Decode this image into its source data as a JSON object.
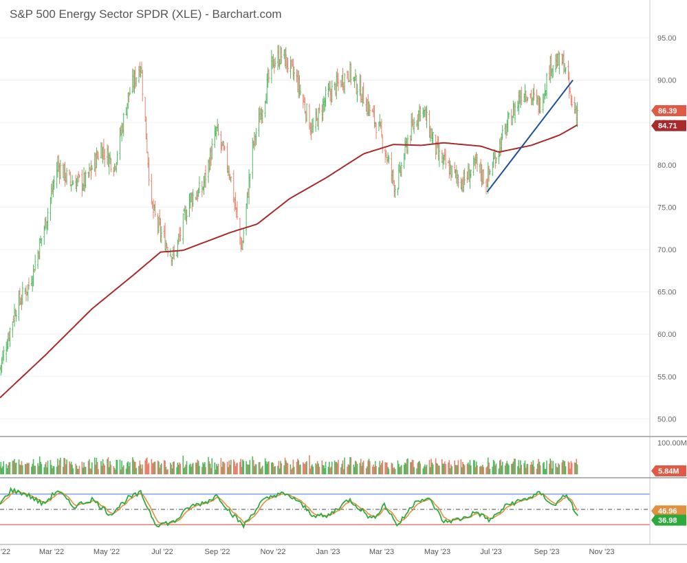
{
  "colors": {
    "up": "#4cbb5f",
    "down": "#e8806a",
    "ma": "#a82a2a",
    "trendline": "#1a4f9c",
    "stoch_k": "#2eaa3d",
    "stoch_d": "#e0913f",
    "grid_line": "#c9c9c9",
    "upper_band": "#5b7ee8",
    "lower_band": "#e0524a",
    "mid_band": "#444444",
    "label_price": "#e05a46",
    "label_ma": "#a82a2a",
    "label_vol": "#e05a46",
    "label_d": "#e0913f",
    "label_k": "#2eaa3d"
  },
  "chart_data": {
    "title": "S&P 500 Energy Sector SPDR (XLE) - Barchart.com",
    "type": "candlestick",
    "x_axis": {
      "ticks": [
        "'22",
        "Mar '22",
        "May '22",
        "Jul '22",
        "Sep '22",
        "Nov '22",
        "Jan '23",
        "Mar '23",
        "May '23",
        "Jul '23",
        "Sep '23",
        "Nov '23"
      ]
    },
    "price": {
      "ylim": [
        48,
        98
      ],
      "tick_values": [
        50,
        55,
        60,
        65,
        70,
        75,
        80,
        85,
        90,
        95
      ],
      "tick_labels": [
        "50.00",
        "55.00",
        "60.00",
        "65.00",
        "70.00",
        "75.00",
        "80.00",
        "85.00",
        "90.00",
        "95.00"
      ],
      "last_price": 86.39,
      "last_price_label": "86.39",
      "ma_last": 84.71,
      "ma_last_label": "84.71",
      "path": [
        [
          "2022-01-03",
          56
        ],
        [
          "2022-01-20",
          63
        ],
        [
          "2022-02-05",
          66
        ],
        [
          "2022-02-22",
          73
        ],
        [
          "2022-03-08",
          80
        ],
        [
          "2022-03-22",
          78
        ],
        [
          "2022-04-08",
          78
        ],
        [
          "2022-04-25",
          82
        ],
        [
          "2022-05-10",
          80
        ],
        [
          "2022-05-25",
          88
        ],
        [
          "2022-06-08",
          92
        ],
        [
          "2022-06-20",
          75
        ],
        [
          "2022-06-30",
          72
        ],
        [
          "2022-07-15",
          69
        ],
        [
          "2022-08-01",
          76
        ],
        [
          "2022-08-15",
          77
        ],
        [
          "2022-08-31",
          84
        ],
        [
          "2022-09-15",
          79
        ],
        [
          "2022-09-28",
          70
        ],
        [
          "2022-10-10",
          82
        ],
        [
          "2022-11-01",
          92
        ],
        [
          "2022-11-12",
          93
        ],
        [
          "2022-11-28",
          90
        ],
        [
          "2022-12-15",
          84
        ],
        [
          "2022-12-31",
          88
        ],
        [
          "2023-01-25",
          91
        ],
        [
          "2023-02-10",
          88
        ],
        [
          "2023-02-28",
          84
        ],
        [
          "2023-03-18",
          77
        ],
        [
          "2023-03-31",
          83
        ],
        [
          "2023-04-15",
          87
        ],
        [
          "2023-05-04",
          81
        ],
        [
          "2023-05-20",
          79
        ],
        [
          "2023-05-31",
          78
        ],
        [
          "2023-06-15",
          80
        ],
        [
          "2023-06-26",
          78
        ],
        [
          "2023-07-06",
          81
        ],
        [
          "2023-07-21",
          85
        ],
        [
          "2023-08-06",
          89
        ],
        [
          "2023-08-24",
          87
        ],
        [
          "2023-09-06",
          92
        ],
        [
          "2023-09-20",
          92
        ],
        [
          "2023-09-29",
          87
        ],
        [
          "2023-10-05",
          86.39
        ]
      ],
      "ma_path": [
        [
          "2022-01-03",
          52.5
        ],
        [
          "2022-02-22",
          57.5
        ],
        [
          "2022-04-15",
          63
        ],
        [
          "2022-05-31",
          67
        ],
        [
          "2022-06-30",
          69.7
        ],
        [
          "2022-07-25",
          69.9
        ],
        [
          "2022-09-15",
          72
        ],
        [
          "2022-10-15",
          73
        ],
        [
          "2022-11-20",
          76
        ],
        [
          "2022-12-31",
          78.5
        ],
        [
          "2023-02-10",
          81.3
        ],
        [
          "2023-03-15",
          82.4
        ],
        [
          "2023-04-15",
          82.3
        ],
        [
          "2023-05-10",
          82.6
        ],
        [
          "2023-06-20",
          82.2
        ],
        [
          "2023-07-10",
          81.5
        ],
        [
          "2023-08-15",
          82.3
        ],
        [
          "2023-09-15",
          83.5
        ],
        [
          "2023-10-05",
          84.71
        ]
      ],
      "trendline": [
        [
          "2023-06-27",
          76.8
        ],
        [
          "2023-09-30",
          90.0
        ]
      ]
    },
    "volume": {
      "top_label": "100.00M",
      "last_label": "5.84M",
      "last": 5.84,
      "ylim": [
        0,
        100
      ]
    },
    "stochastic": {
      "k_last": 36.98,
      "k_last_label": "36.98",
      "d_last": 46.96,
      "d_last_label": "46.96",
      "upper": 80,
      "middle": 50,
      "lower": 20,
      "k_path": [
        [
          "2022-01-03",
          60
        ],
        [
          "2022-01-15",
          88
        ],
        [
          "2022-02-01",
          80
        ],
        [
          "2022-02-20",
          60
        ],
        [
          "2022-03-08",
          88
        ],
        [
          "2022-03-25",
          55
        ],
        [
          "2022-04-15",
          70
        ],
        [
          "2022-05-05",
          40
        ],
        [
          "2022-05-25",
          72
        ],
        [
          "2022-06-08",
          82
        ],
        [
          "2022-06-25",
          20
        ],
        [
          "2022-07-15",
          25
        ],
        [
          "2022-08-01",
          55
        ],
        [
          "2022-08-20",
          65
        ],
        [
          "2022-09-01",
          78
        ],
        [
          "2022-09-15",
          45
        ],
        [
          "2022-09-30",
          18
        ],
        [
          "2022-10-20",
          65
        ],
        [
          "2022-11-08",
          82
        ],
        [
          "2022-11-25",
          72
        ],
        [
          "2022-12-15",
          40
        ],
        [
          "2022-12-31",
          35
        ],
        [
          "2023-01-25",
          70
        ],
        [
          "2023-02-20",
          30
        ],
        [
          "2023-03-05",
          60
        ],
        [
          "2023-03-20",
          18
        ],
        [
          "2023-04-10",
          70
        ],
        [
          "2023-04-25",
          68
        ],
        [
          "2023-05-10",
          25
        ],
        [
          "2023-05-31",
          32
        ],
        [
          "2023-06-15",
          45
        ],
        [
          "2023-06-30",
          28
        ],
        [
          "2023-07-20",
          60
        ],
        [
          "2023-08-05",
          68
        ],
        [
          "2023-08-25",
          82
        ],
        [
          "2023-09-10",
          55
        ],
        [
          "2023-09-20",
          82
        ],
        [
          "2023-09-30",
          55
        ],
        [
          "2023-10-05",
          36.98
        ]
      ]
    }
  }
}
